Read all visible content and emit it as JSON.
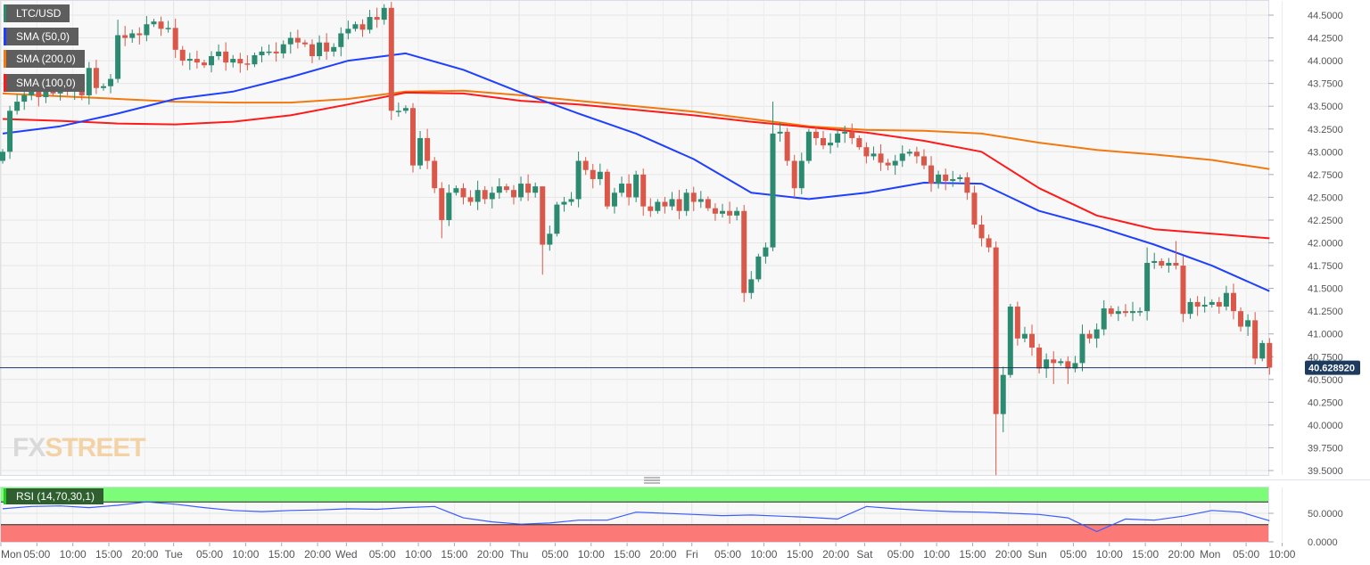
{
  "legend": {
    "symbol": "LTC/USD",
    "sma50": "SMA (50,0)",
    "sma200": "SMA (200,0)",
    "sma100": "SMA (100,0)",
    "rsi": "RSI (14,70,30,1)"
  },
  "watermark": "FXSTREET",
  "colors": {
    "up": "#2b8a6f",
    "down": "#d9584a",
    "sma50": "#1f3fff",
    "sma200": "#f07a10",
    "sma100": "#ff1a1a",
    "rsi": "#3b5bff",
    "overbought": "#7dfc7a",
    "oversold": "#fb7a78",
    "price_label": "#1d3a5f"
  },
  "chart_data": {
    "type": "candlestick",
    "symbol": "LTC/USD",
    "interval": "1 hour",
    "current_price": "40.628920",
    "ylim": [
      39.45,
      44.6
    ],
    "y_ticks": [
      "44.5000",
      "44.2500",
      "44.0000",
      "43.7500",
      "43.5000",
      "43.2500",
      "43.0000",
      "42.7500",
      "42.5000",
      "42.2500",
      "42.0000",
      "41.7500",
      "41.5000",
      "41.2500",
      "41.0000",
      "40.7500",
      "40.5000",
      "40.2500",
      "40.0000",
      "39.7500",
      "39.5000"
    ],
    "x_ticks": [
      "Mon",
      "05:00",
      "10:00",
      "15:00",
      "20:00",
      "Tue",
      "05:00",
      "10:00",
      "15:00",
      "20:00",
      "Wed",
      "05:00",
      "10:00",
      "15:00",
      "20:00",
      "Thu",
      "05:00",
      "10:00",
      "15:00",
      "20:00",
      "Fri",
      "05:00",
      "10:00",
      "15:00",
      "20:00",
      "Sat",
      "05:00",
      "10:00",
      "15:00",
      "20:00",
      "Sun",
      "05:00",
      "10:00",
      "15:00",
      "20:00",
      "Mon",
      "05:00",
      "10:00"
    ],
    "first_open": 42.9,
    "close": [
      43.0,
      43.45,
      43.55,
      43.62,
      43.66,
      43.6,
      43.7,
      43.64,
      43.68,
      43.66,
      43.72,
      43.62,
      43.92,
      43.7,
      43.72,
      43.8,
      44.28,
      44.25,
      44.3,
      44.28,
      44.4,
      44.43,
      44.35,
      44.36,
      44.12,
      44.0,
      44.02,
      43.98,
      43.95,
      44.05,
      44.1,
      43.98,
      44.02,
      43.97,
      43.96,
      44.06,
      44.1,
      44.1,
      44.08,
      44.18,
      44.25,
      44.2,
      44.18,
      44.05,
      44.2,
      44.1,
      44.15,
      44.3,
      44.35,
      44.4,
      44.34,
      44.48,
      44.45,
      44.58,
      43.45,
      43.45,
      43.48,
      42.85,
      43.15,
      42.9,
      42.6,
      42.25,
      42.55,
      42.6,
      42.5,
      42.45,
      42.58,
      42.48,
      42.55,
      42.62,
      42.58,
      42.5,
      42.65,
      42.55,
      42.62,
      41.98,
      42.1,
      42.42,
      42.45,
      42.48,
      42.9,
      42.8,
      42.7,
      42.78,
      42.4,
      42.55,
      42.65,
      42.5,
      42.75,
      42.4,
      42.35,
      42.45,
      42.4,
      42.48,
      42.35,
      42.55,
      42.45,
      42.48,
      42.38,
      42.32,
      42.35,
      42.3,
      42.35,
      41.45,
      41.6,
      41.85,
      41.95,
      43.2,
      43.22,
      42.9,
      42.6,
      42.9,
      43.22,
      43.15,
      43.07,
      43.1,
      43.2,
      43.22,
      43.15,
      43.05,
      42.95,
      42.98,
      42.88,
      42.85,
      42.9,
      42.98,
      43.0,
      42.95,
      42.85,
      42.65,
      42.75,
      42.68,
      42.7,
      42.72,
      42.55,
      42.2,
      42.05,
      41.95,
      40.12,
      40.55,
      41.3,
      40.95,
      41.0,
      40.85,
      40.62,
      40.72,
      40.68,
      40.7,
      40.62,
      40.68,
      41.0,
      40.95,
      41.05,
      41.28,
      41.22,
      41.25,
      41.23,
      41.25,
      41.25,
      41.78,
      41.8,
      41.75,
      41.78,
      41.75,
      41.22,
      41.35,
      41.3,
      41.32,
      41.35,
      41.3,
      41.45,
      41.25,
      41.08,
      41.15,
      40.73,
      40.9,
      40.63
    ],
    "notable_highs": {
      "53": 44.62,
      "16": 44.45,
      "107": 43.55,
      "75": 42.55,
      "159": 41.95,
      "163": 42.02
    },
    "notable_lows": {
      "75": 41.65,
      "61": 42.05,
      "103": 41.35,
      "138": 39.45,
      "139": 39.92,
      "146": 40.45,
      "148": 40.45
    },
    "sma_sample_every_hours": 8,
    "sma50": [
      43.2,
      43.28,
      43.42,
      43.58,
      43.66,
      43.82,
      44.0,
      44.08,
      43.9,
      43.65,
      43.42,
      43.2,
      42.92,
      42.55,
      42.48,
      42.55,
      42.66,
      42.65,
      42.35,
      42.18,
      41.98,
      41.75,
      41.47
    ],
    "sma200": [
      43.64,
      43.61,
      43.58,
      43.55,
      43.54,
      43.54,
      43.58,
      43.66,
      43.67,
      43.62,
      43.56,
      43.5,
      43.44,
      43.36,
      43.28,
      43.24,
      43.23,
      43.2,
      43.1,
      43.02,
      42.97,
      42.91,
      42.81
    ],
    "sma100": [
      43.36,
      43.34,
      43.31,
      43.3,
      43.33,
      43.4,
      43.52,
      43.65,
      43.64,
      43.56,
      43.52,
      43.46,
      43.4,
      43.33,
      43.27,
      43.21,
      43.12,
      43.0,
      42.6,
      42.3,
      42.15,
      42.1,
      42.05
    ],
    "rsi": {
      "period": 14,
      "overbought": 70,
      "oversold": 30,
      "sample_every_hours": 4,
      "y_ticks": [
        "50.0000",
        "0.0000"
      ],
      "values": [
        58,
        62,
        63,
        60,
        64,
        70,
        66,
        60,
        55,
        53,
        55,
        56,
        58,
        57,
        60,
        62,
        42,
        35,
        31,
        33,
        38,
        38,
        52,
        50,
        48,
        46,
        47,
        45,
        43,
        40,
        62,
        58,
        55,
        53,
        52,
        50,
        48,
        42,
        18,
        40,
        38,
        45,
        55,
        52,
        37
      ]
    }
  }
}
